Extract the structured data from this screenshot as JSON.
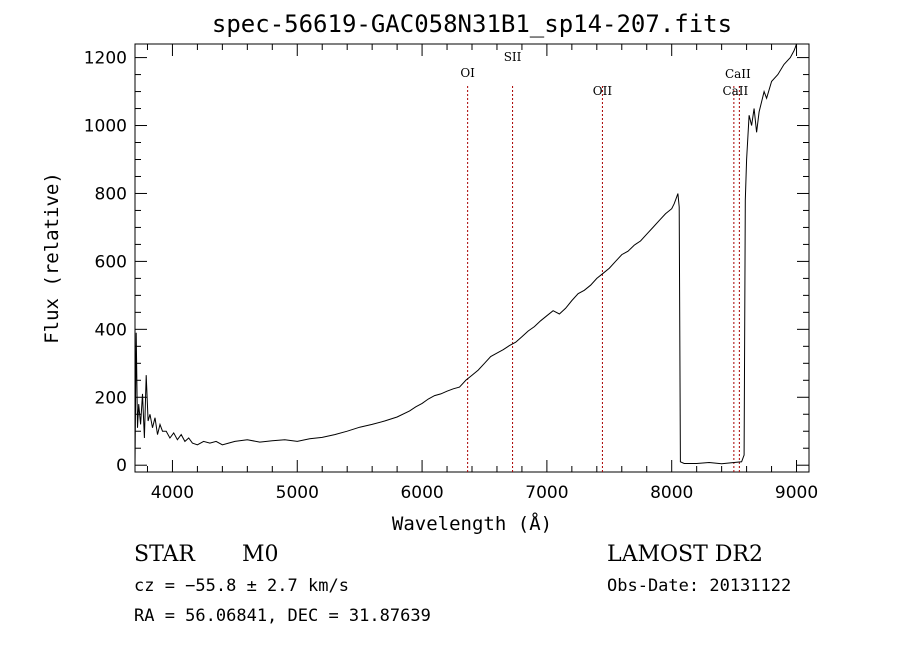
{
  "chart_data": {
    "type": "line",
    "title": "spec-56619-GAC058N31B1_sp14-207.fits",
    "xlabel": "Wavelength (Å)",
    "ylabel": "Flux (relative)",
    "xlim": [
      3700,
      9100
    ],
    "ylim": [
      -20,
      1240
    ],
    "x_ticks": [
      4000,
      5000,
      6000,
      7000,
      8000,
      9000
    ],
    "y_ticks": [
      0,
      200,
      400,
      600,
      800,
      1000,
      1200
    ],
    "grid": false,
    "line_color": "#000000",
    "marker_color": "#aa0000",
    "spectral_lines": [
      {
        "label": "OI",
        "x": 6365
      },
      {
        "label": "SII",
        "x": 6725
      },
      {
        "label": "OII",
        "x": 7445
      },
      {
        "label": "CaII",
        "x": 8498
      },
      {
        "label": "CaII",
        "x": 8542
      }
    ],
    "series": [
      {
        "x": [
          3700,
          3710,
          3720,
          3730,
          3745,
          3760,
          3775,
          3790,
          3805,
          3820,
          3840,
          3860,
          3880,
          3900,
          3920,
          3950,
          3980,
          4010,
          4040,
          4070,
          4100,
          4130,
          4160,
          4200,
          4250,
          4300,
          4350,
          4400,
          4450,
          4500,
          4600,
          4700,
          4800,
          4900,
          5000,
          5100,
          5200,
          5300,
          5400,
          5500,
          5600,
          5700,
          5800,
          5900,
          5950,
          6000,
          6050,
          6100,
          6150,
          6200,
          6250,
          6300,
          6350,
          6400,
          6450,
          6500,
          6550,
          6600,
          6650,
          6700,
          6750,
          6800,
          6850,
          6900,
          6950,
          7000,
          7050,
          7100,
          7150,
          7200,
          7250,
          7300,
          7350,
          7400,
          7450,
          7500,
          7550,
          7600,
          7650,
          7700,
          7750,
          7800,
          7850,
          7900,
          7950,
          8000,
          8020,
          8040,
          8050,
          8060,
          8070,
          8100,
          8200,
          8300,
          8400,
          8500,
          8560,
          8580,
          8590,
          8600,
          8620,
          8640,
          8660,
          8680,
          8700,
          8720,
          8740,
          8760,
          8800,
          8850,
          8900,
          8950,
          8980,
          8990,
          9000
        ],
        "y": [
          0,
          390,
          110,
          180,
          120,
          210,
          80,
          265,
          130,
          150,
          110,
          140,
          90,
          120,
          100,
          100,
          80,
          95,
          75,
          90,
          70,
          80,
          65,
          60,
          70,
          65,
          70,
          60,
          65,
          70,
          75,
          68,
          72,
          75,
          70,
          78,
          82,
          90,
          100,
          112,
          120,
          130,
          142,
          160,
          172,
          182,
          195,
          205,
          210,
          218,
          225,
          230,
          250,
          265,
          280,
          300,
          320,
          330,
          340,
          352,
          362,
          378,
          395,
          408,
          425,
          440,
          455,
          445,
          462,
          485,
          505,
          515,
          530,
          550,
          565,
          580,
          600,
          620,
          630,
          648,
          660,
          680,
          700,
          720,
          740,
          755,
          770,
          790,
          800,
          760,
          10,
          5,
          5,
          8,
          4,
          8,
          10,
          30,
          780,
          900,
          1030,
          1000,
          1050,
          980,
          1040,
          1070,
          1100,
          1080,
          1130,
          1150,
          1180,
          1200,
          1220,
          1230,
          1240
        ]
      }
    ]
  },
  "footer": {
    "object_class": "STAR",
    "subclass": "M0",
    "cz": "cz = −55.8 ± 2.7 km/s",
    "coords": "RA =  56.06841, DEC =  31.87639",
    "survey": "LAMOST DR2",
    "obs_date": "Obs-Date: 20131122"
  }
}
